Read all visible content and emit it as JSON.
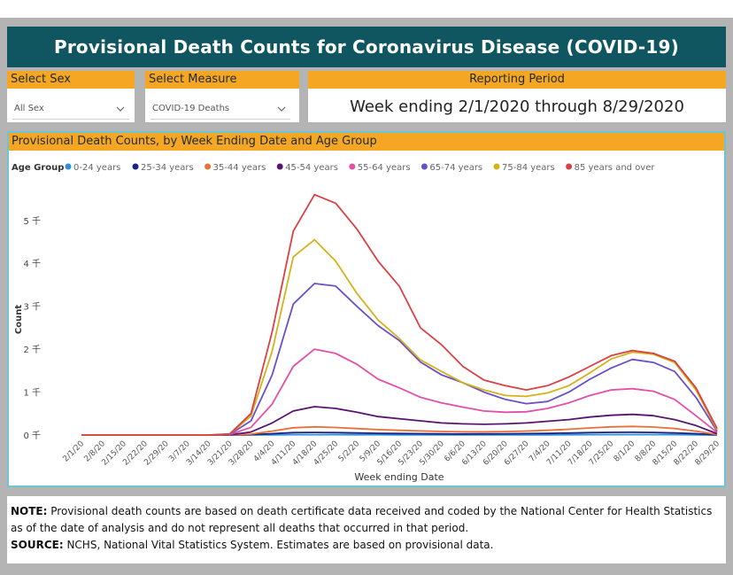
{
  "header": {
    "title": "Provisional Death Counts for Coronavirus Disease (COVID-19)"
  },
  "filters": {
    "sex": {
      "label": "Select Sex",
      "value": "All Sex"
    },
    "measure": {
      "label": "Select Measure",
      "value": "COVID-19 Deaths"
    },
    "period": {
      "label": "Reporting Period",
      "value": "Week ending 2/1/2020 through 8/29/2020"
    }
  },
  "colors": {
    "title_bg": "#0f5660",
    "accent": "#f5a623",
    "chart_border": "#6fc3d6"
  },
  "chart_data": {
    "type": "line",
    "title": "Provisional Death Counts, by Week Ending Date and Age Group",
    "legend_title": "Age Group",
    "xlabel": "Week ending Date",
    "ylabel": "Count",
    "y_ticks": [
      0,
      1000,
      2000,
      3000,
      4000,
      5000
    ],
    "y_tick_labels": [
      "0 千",
      "1 千",
      "2 千",
      "3 千",
      "4 千",
      "5 千"
    ],
    "ylim": [
      0,
      5800
    ],
    "categories": [
      "2/1/20",
      "2/8/20",
      "2/15/20",
      "2/22/20",
      "2/29/20",
      "3/7/20",
      "3/14/20",
      "3/21/20",
      "3/28/20",
      "4/4/20",
      "4/11/20",
      "4/18/20",
      "4/25/20",
      "5/2/20",
      "5/9/20",
      "5/16/20",
      "5/23/20",
      "5/30/20",
      "6/6/20",
      "6/13/20",
      "6/20/20",
      "6/27/20",
      "7/4/20",
      "7/11/20",
      "7/18/20",
      "7/25/20",
      "8/1/20",
      "8/8/20",
      "8/15/20",
      "8/22/20",
      "8/29/20"
    ],
    "series": [
      {
        "name": "0-24 years",
        "color": "#2d8fe0",
        "values": [
          0,
          0,
          0,
          0,
          0,
          0,
          0,
          0,
          2,
          5,
          8,
          9,
          8,
          7,
          6,
          5,
          5,
          4,
          4,
          4,
          4,
          4,
          5,
          6,
          8,
          10,
          11,
          10,
          8,
          5,
          1
        ]
      },
      {
        "name": "25-34 years",
        "color": "#1a237e",
        "values": [
          0,
          0,
          0,
          0,
          0,
          0,
          0,
          0,
          8,
          30,
          55,
          60,
          55,
          48,
          40,
          35,
          30,
          26,
          25,
          26,
          28,
          32,
          38,
          45,
          55,
          62,
          65,
          60,
          48,
          30,
          5
        ]
      },
      {
        "name": "35-44 years",
        "color": "#e8703a",
        "values": [
          0,
          0,
          0,
          0,
          0,
          0,
          0,
          1,
          20,
          90,
          170,
          190,
          175,
          150,
          125,
          110,
          95,
          82,
          75,
          74,
          80,
          92,
          110,
          135,
          165,
          190,
          200,
          185,
          150,
          90,
          10
        ]
      },
      {
        "name": "45-54 years",
        "color": "#5a1470",
        "values": [
          0,
          0,
          0,
          0,
          0,
          0,
          0,
          3,
          70,
          280,
          560,
          660,
          620,
          530,
          430,
          380,
          330,
          280,
          260,
          250,
          260,
          280,
          320,
          360,
          420,
          460,
          480,
          450,
          360,
          220,
          30
        ]
      },
      {
        "name": "55-64 years",
        "color": "#e250a8",
        "values": [
          0,
          0,
          0,
          0,
          0,
          0,
          0,
          8,
          180,
          720,
          1600,
          2000,
          1900,
          1650,
          1300,
          1100,
          880,
          750,
          650,
          560,
          530,
          540,
          620,
          750,
          920,
          1050,
          1080,
          1020,
          830,
          450,
          60
        ]
      },
      {
        "name": "65-74 years",
        "color": "#6a4fc9",
        "values": [
          0,
          0,
          0,
          0,
          0,
          0,
          0,
          12,
          330,
          1400,
          3050,
          3530,
          3470,
          3000,
          2550,
          2200,
          1700,
          1400,
          1220,
          1000,
          830,
          730,
          780,
          1000,
          1300,
          1560,
          1760,
          1690,
          1480,
          880,
          90
        ]
      },
      {
        "name": "75-84 years",
        "color": "#d4b21c",
        "values": [
          0,
          0,
          0,
          0,
          0,
          0,
          0,
          20,
          440,
          1950,
          4150,
          4550,
          4050,
          3300,
          2680,
          2250,
          1750,
          1480,
          1220,
          1050,
          920,
          900,
          980,
          1150,
          1450,
          1770,
          1930,
          1880,
          1690,
          1050,
          120
        ]
      },
      {
        "name": "85 years and over",
        "color": "#d94045",
        "values": [
          0,
          0,
          0,
          0,
          0,
          0,
          0,
          25,
          500,
          2400,
          4750,
          5600,
          5400,
          4800,
          4050,
          3470,
          2500,
          2100,
          1600,
          1280,
          1150,
          1050,
          1150,
          1350,
          1600,
          1850,
          1970,
          1900,
          1720,
          1100,
          150
        ]
      }
    ]
  },
  "note": {
    "label": "NOTE:",
    "text": " Provisional death counts are based on death certificate data received and coded by the National Center for Health Statistics as of the date of analysis and do not represent all deaths that occurred in that period.",
    "source_label": "SOURCE:",
    "source_text": " NCHS, National Vital Statistics System. Estimates are based on provisional data."
  }
}
